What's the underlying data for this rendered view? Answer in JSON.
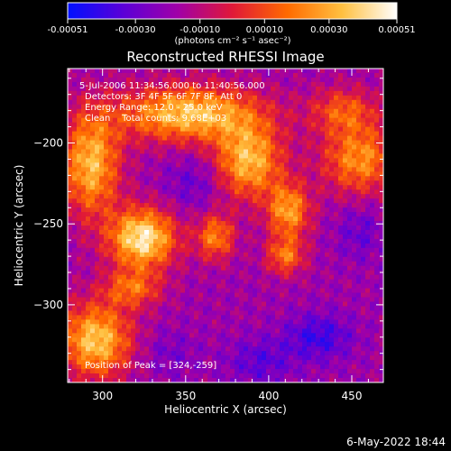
{
  "colorbar": {
    "tick_labels": [
      "-0.00051",
      "-0.00030",
      "-0.00010",
      "0.00010",
      "0.00030",
      "0.00051"
    ],
    "tick_values": [
      -0.00051,
      -0.0003,
      -0.0001,
      0.0001,
      0.0003,
      0.00051
    ],
    "range": [
      -0.00051,
      0.00051
    ],
    "unit_label": "(photons cm⁻² s⁻¹ asec⁻²)",
    "colors": [
      "#0010ff",
      "#5a00d8",
      "#a000a8",
      "#e01838",
      "#ff6a00",
      "#ffc040",
      "#ffffff"
    ]
  },
  "chart_data": {
    "type": "heatmap",
    "title": "Reconstructed RHESSI Image",
    "xlabel": "Heliocentric X (arcsec)",
    "ylabel": "Heliocentric Y (arcsec)",
    "xlim": [
      279,
      469
    ],
    "ylim": [
      -348,
      -154
    ],
    "x_ticks": [
      300,
      350,
      400,
      450
    ],
    "x_tick_labels": [
      "300",
      "350",
      "400",
      "450"
    ],
    "y_ticks": [
      -200,
      -250,
      -300
    ],
    "y_tick_labels": [
      "−200",
      "−250",
      "−300"
    ],
    "colormap": "rhessi-hot-blue",
    "sources": [
      {
        "x": 324,
        "y": -259,
        "sx": 14,
        "sy": 13,
        "amp": 1.0
      },
      {
        "x": 293,
        "y": -213,
        "sx": 12,
        "sy": 22,
        "amp": 0.8
      },
      {
        "x": 352,
        "y": -182,
        "sx": 30,
        "sy": 12,
        "amp": 0.85
      },
      {
        "x": 388,
        "y": -211,
        "sx": 14,
        "sy": 16,
        "amp": 0.8
      },
      {
        "x": 412,
        "y": -242,
        "sx": 9,
        "sy": 12,
        "amp": 0.7
      },
      {
        "x": 410,
        "y": -270,
        "sx": 8,
        "sy": 8,
        "amp": 0.55
      },
      {
        "x": 455,
        "y": -210,
        "sx": 16,
        "sy": 15,
        "amp": 0.65
      },
      {
        "x": 296,
        "y": -322,
        "sx": 15,
        "sy": 16,
        "amp": 0.85
      },
      {
        "x": 368,
        "y": -258,
        "sx": 8,
        "sy": 10,
        "amp": 0.6
      },
      {
        "x": 318,
        "y": -290,
        "sx": 12,
        "sy": 8,
        "amp": 0.5
      },
      {
        "x": 445,
        "y": -180,
        "sx": 14,
        "sy": 10,
        "amp": 0.45
      },
      {
        "x": 430,
        "y": -320,
        "sx": 14,
        "sy": 10,
        "amp": -0.35
      },
      {
        "x": 395,
        "y": -335,
        "sx": 14,
        "sy": 10,
        "amp": -0.25
      },
      {
        "x": 355,
        "y": -225,
        "sx": 12,
        "sy": 12,
        "amp": -0.2
      },
      {
        "x": 455,
        "y": -255,
        "sx": 10,
        "sy": 12,
        "amp": -0.2
      },
      {
        "x": 340,
        "y": -330,
        "sx": 12,
        "sy": 10,
        "amp": -0.15
      }
    ],
    "annotations": [
      "5-Jul-2006 11:34:56.000 to 11:40:56.000",
      "Detectors: 3F 4F 5F 6F 7F 8F, Att 0",
      "Energy Range: 12.0 - 25.0 keV",
      "Clean    Total counts: 9.68E+03"
    ],
    "peak_label": "Position of Peak = [324,-259]",
    "peak_position": [
      324,
      -259
    ]
  },
  "footer": {
    "timestamp": "6-May-2022 18:44"
  }
}
